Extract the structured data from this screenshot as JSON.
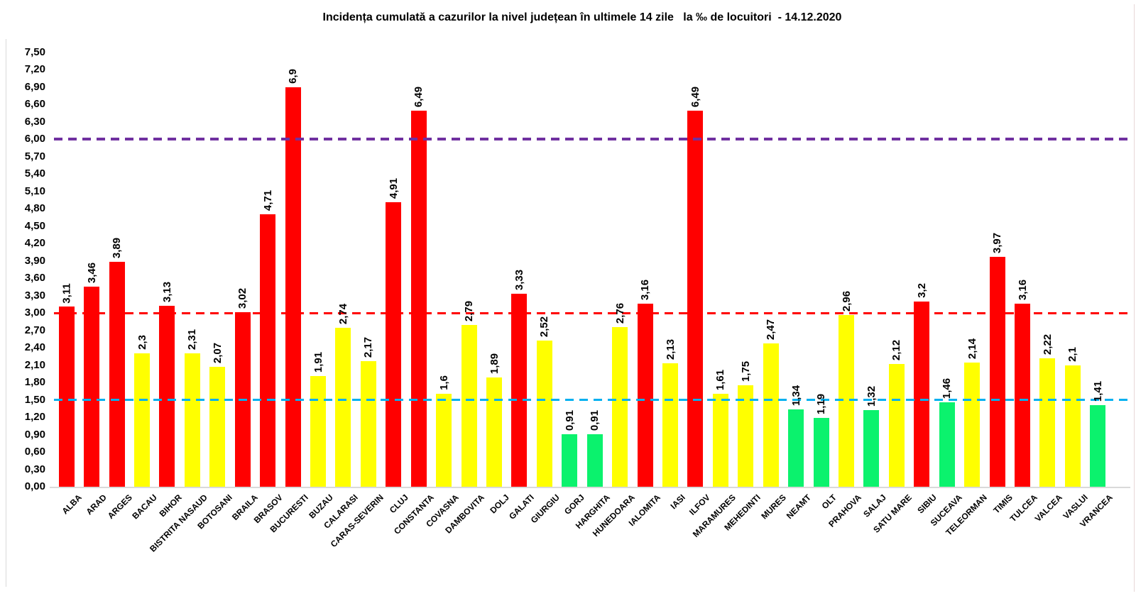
{
  "chart_data": {
    "type": "bar",
    "title": "Incidența cumulată a cazurilor la nivel județean în ultimele 14 zile   la ‰ de locuitori  - 14.12.2020",
    "categories": [
      "ALBA",
      "ARAD",
      "ARGES",
      "BACAU",
      "BIHOR",
      "BISTRITA NASAUD",
      "BOTOSANI",
      "BRAILA",
      "BRASOV",
      "BUCURESTI",
      "BUZAU",
      "CALARASI",
      "CARAS-SEVERIN",
      "CLUJ",
      "CONSTANTA",
      "COVASNA",
      "DAMBOVITA",
      "DOLJ",
      "GALATI",
      "GIURGIU",
      "GORJ",
      "HARGHITA",
      "HUNEDOARA",
      "IALOMITA",
      "IASI",
      "ILFOV",
      "MARAMURES",
      "MEHEDINTI",
      "MURES",
      "NEAMT",
      "OLT",
      "PRAHOVA",
      "SALAJ",
      "SATU MARE",
      "SIBIU",
      "SUCEAVA",
      "TELEORMAN",
      "TIMIS",
      "TULCEA",
      "VALCEA",
      "VASLUI",
      "VRANCEA"
    ],
    "values": [
      3.11,
      3.46,
      3.89,
      2.3,
      3.13,
      2.31,
      2.07,
      3.02,
      4.71,
      6.9,
      1.91,
      2.74,
      2.17,
      4.91,
      6.49,
      1.6,
      2.79,
      1.89,
      3.33,
      2.52,
      0.91,
      0.91,
      2.76,
      3.16,
      2.13,
      6.49,
      1.61,
      1.75,
      2.47,
      1.34,
      1.19,
      2.96,
      1.32,
      2.12,
      3.2,
      1.46,
      2.14,
      3.97,
      3.16,
      2.22,
      2.1,
      1.41
    ],
    "value_labels": [
      "3,11",
      "3,46",
      "3,89",
      "2,3",
      "3,13",
      "2,31",
      "2,07",
      "3,02",
      "4,71",
      "6,9",
      "1,91",
      "2,74",
      "2,17",
      "4,91",
      "6,49",
      "1,6",
      "2,79",
      "1,89",
      "3,33",
      "2,52",
      "0,91",
      "0,91",
      "2,76",
      "3,16",
      "2,13",
      "6,49",
      "1,61",
      "1,75",
      "2,47",
      "1,34",
      "1,19",
      "2,96",
      "1,32",
      "2,12",
      "3,2",
      "1,46",
      "2,14",
      "3,97",
      "3,16",
      "2,22",
      "2,1",
      "1,41"
    ],
    "yticks": [
      "0,00",
      "0,30",
      "0,60",
      "0,90",
      "1,20",
      "1,50",
      "1,80",
      "2,10",
      "2,40",
      "2,70",
      "3,00",
      "3,30",
      "3,60",
      "3,90",
      "4,20",
      "4,50",
      "4,80",
      "5,10",
      "5,40",
      "5,70",
      "6,00",
      "6,30",
      "6,60",
      "6,90",
      "7,20",
      "7,50"
    ],
    "ylim": [
      0,
      7.5
    ],
    "ytick_step": 0.3,
    "xlabel": "",
    "ylabel": "",
    "grid": false,
    "legend": false,
    "bar_colors": {
      "high": "#FF0000",
      "mid": "#FFFF00",
      "low": "#0BF26D"
    },
    "color_thresholds": {
      "low_below": 1.5,
      "high_from": 3.0
    },
    "reference_lines": [
      {
        "value": 6.0,
        "color": "#7030A0",
        "style": "dashed"
      },
      {
        "value": 3.0,
        "color": "#FF0000",
        "style": "dashed"
      },
      {
        "value": 1.5,
        "color": "#00B0F0",
        "style": "dashed"
      }
    ]
  }
}
